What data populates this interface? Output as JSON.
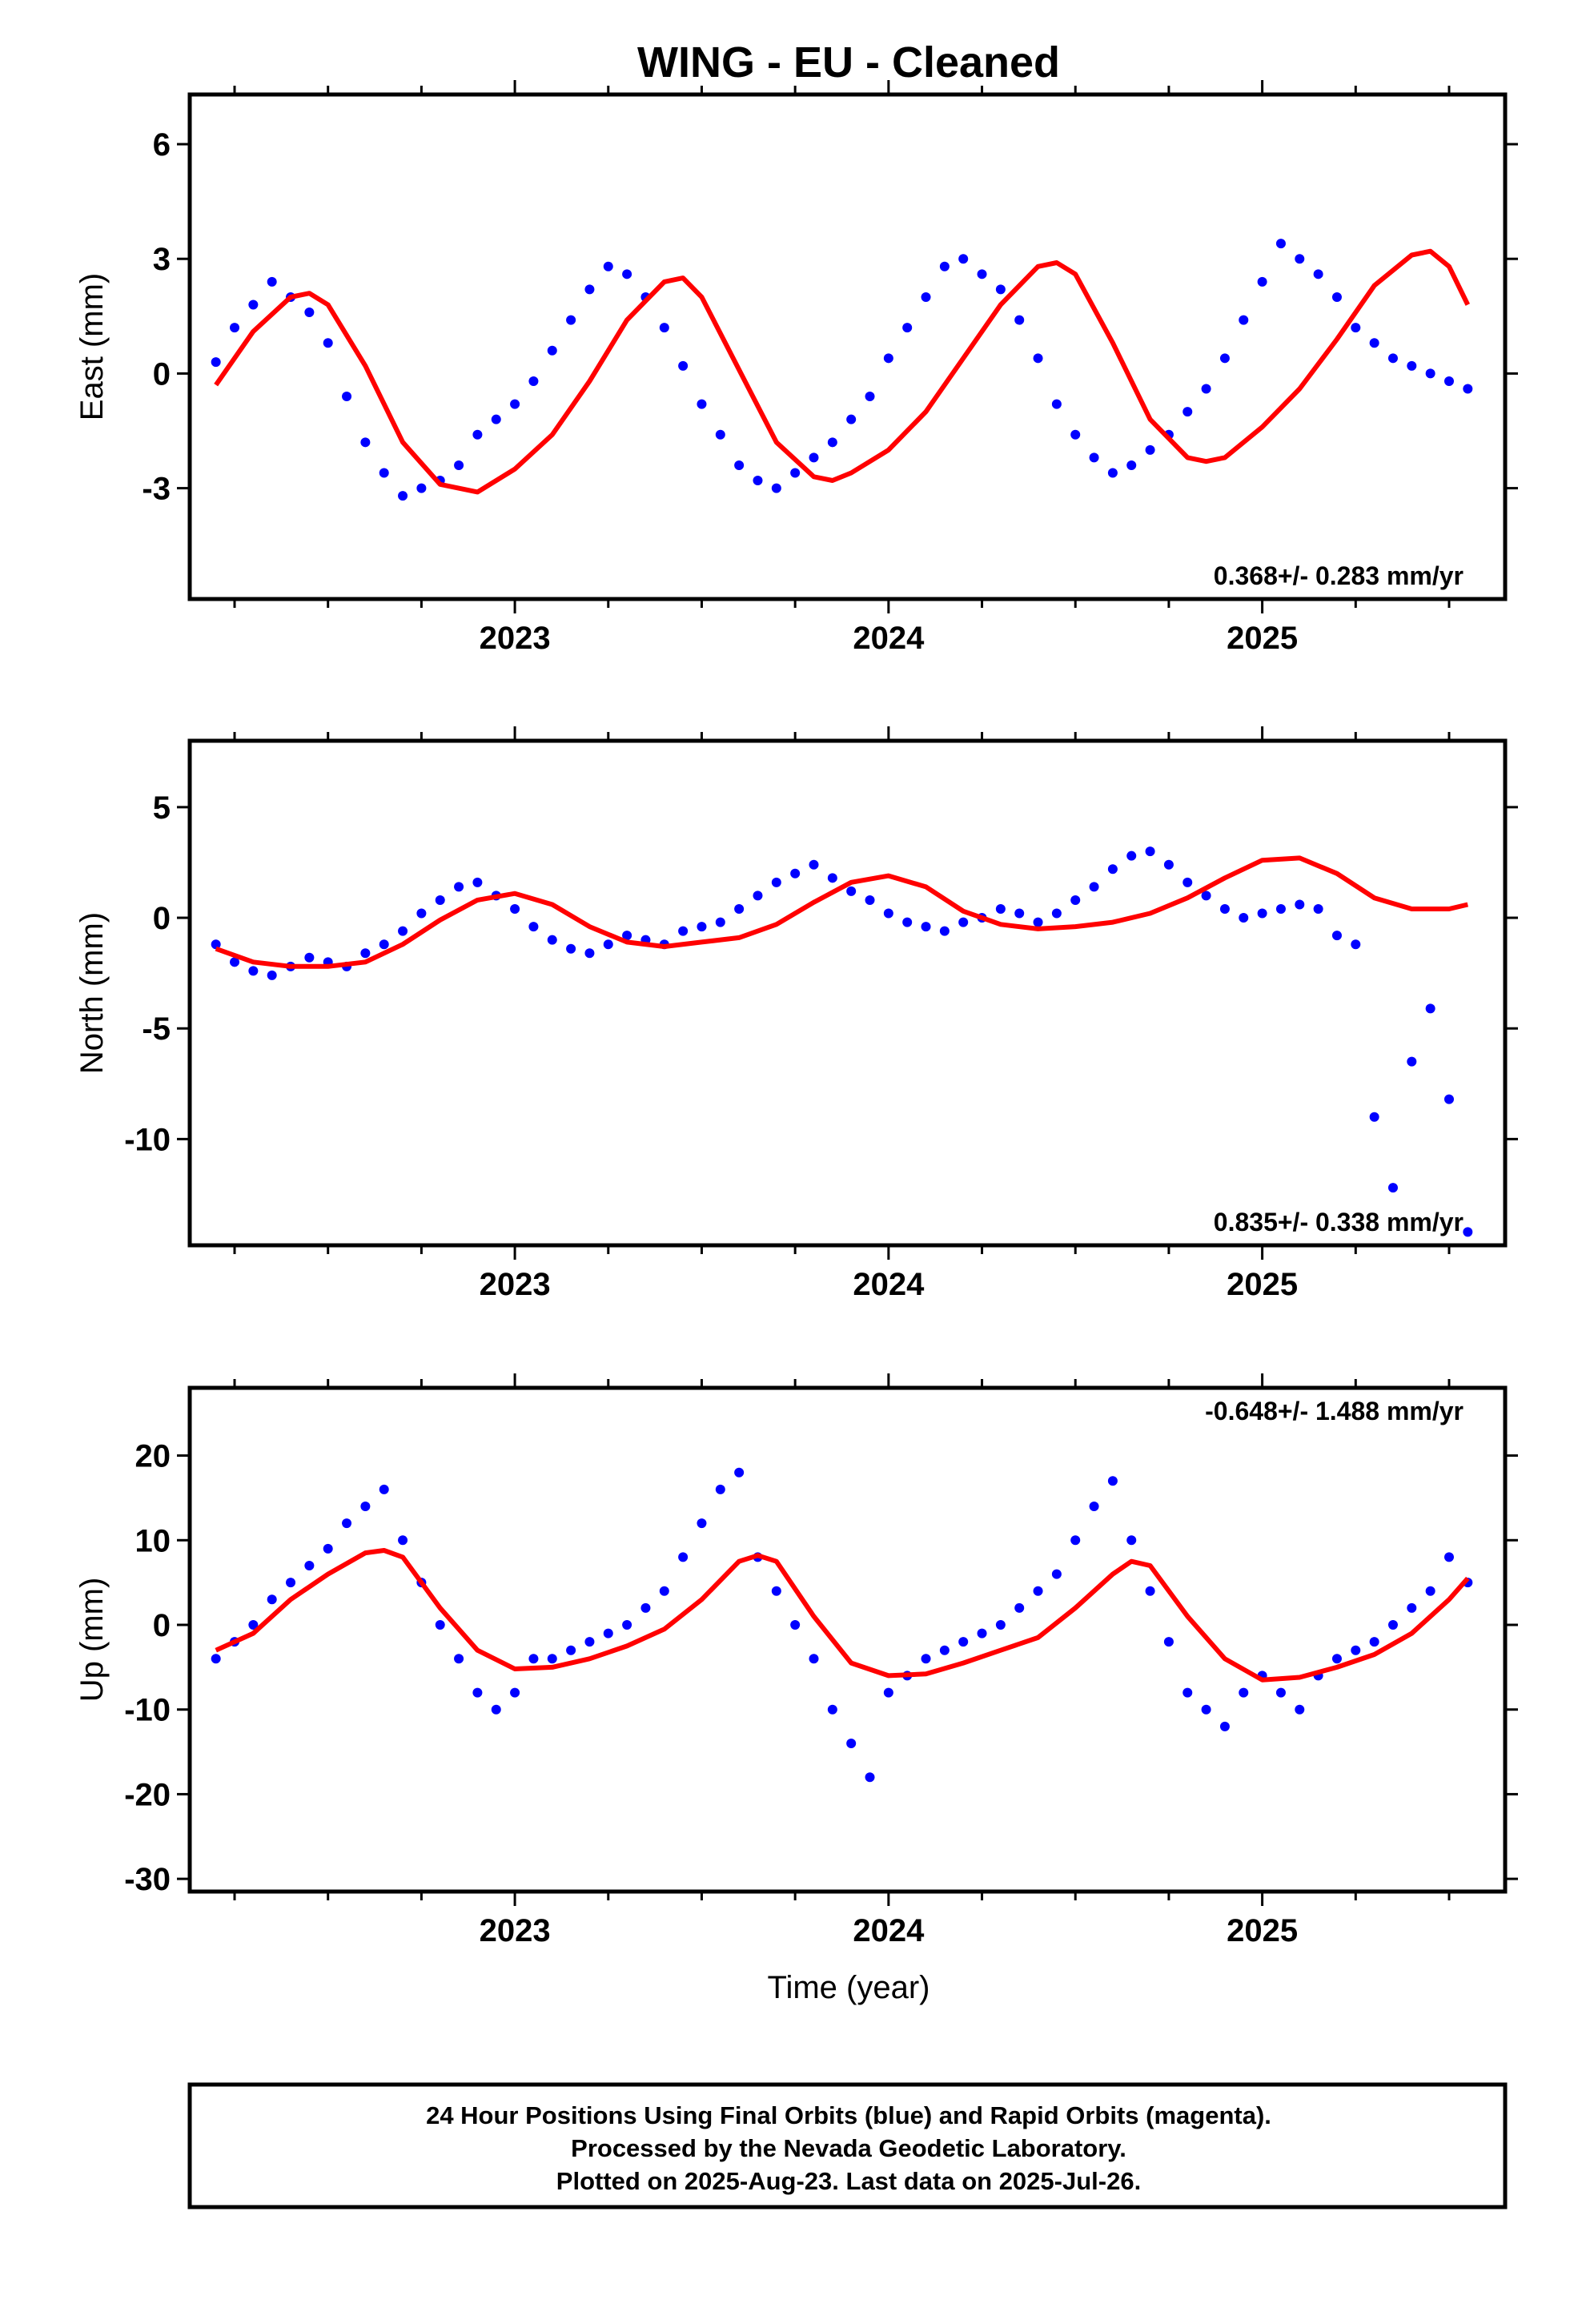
{
  "figure": {
    "title": "WING  - EU - Cleaned",
    "xlabel": "Time (year)",
    "footer": [
      "24 Hour Positions Using Final Orbits (blue) and Rapid Orbits (magenta).",
      "Processed by the Nevada Geodetic Laboratory.",
      "Plotted on 2025-Aug-23. Last data on 2025-Jul-26."
    ],
    "colors": {
      "points": "#0000ff",
      "fit": "#ff0000",
      "axes": "#000000"
    }
  },
  "chart_data": [
    {
      "type": "scatter",
      "component": "East",
      "ylabel": "East (mm)",
      "xlim": [
        2022.13,
        2025.65
      ],
      "ylim": [
        -5.9,
        7.3
      ],
      "yticks": [
        -3,
        0,
        3,
        6
      ],
      "xticks": [
        2023,
        2024,
        2025
      ],
      "rate_label": "0.368+/- 0.283 mm/yr",
      "legend": "none",
      "grid": false,
      "series": [
        {
          "kind": "points",
          "x": [
            2022.2,
            2022.25,
            2022.3,
            2022.35,
            2022.4,
            2022.45,
            2022.5,
            2022.55,
            2022.6,
            2022.65,
            2022.7,
            2022.75,
            2022.8,
            2022.85,
            2022.9,
            2022.95,
            2023.0,
            2023.05,
            2023.1,
            2023.15,
            2023.2,
            2023.25,
            2023.3,
            2023.35,
            2023.4,
            2023.45,
            2023.5,
            2023.55,
            2023.6,
            2023.65,
            2023.7,
            2023.75,
            2023.8,
            2023.85,
            2023.9,
            2023.95,
            2024.0,
            2024.05,
            2024.1,
            2024.15,
            2024.2,
            2024.25,
            2024.3,
            2024.35,
            2024.4,
            2024.45,
            2024.5,
            2024.55,
            2024.6,
            2024.65,
            2024.7,
            2024.75,
            2024.8,
            2024.85,
            2024.9,
            2024.95,
            2025.0,
            2025.05,
            2025.1,
            2025.15,
            2025.2,
            2025.25,
            2025.3,
            2025.35,
            2025.4,
            2025.45,
            2025.5,
            2025.55
          ],
          "y": [
            0.3,
            1.2,
            1.8,
            2.4,
            2.0,
            1.6,
            0.8,
            -0.6,
            -1.8,
            -2.6,
            -3.2,
            -3.0,
            -2.8,
            -2.4,
            -1.6,
            -1.2,
            -0.8,
            -0.2,
            0.6,
            1.4,
            2.2,
            2.8,
            2.6,
            2.0,
            1.2,
            0.2,
            -0.8,
            -1.6,
            -2.4,
            -2.8,
            -3.0,
            -2.6,
            -2.2,
            -1.8,
            -1.2,
            -0.6,
            0.4,
            1.2,
            2.0,
            2.8,
            3.0,
            2.6,
            2.2,
            1.4,
            0.4,
            -0.8,
            -1.6,
            -2.2,
            -2.6,
            -2.4,
            -2.0,
            -1.6,
            -1.0,
            -0.4,
            0.4,
            1.4,
            2.4,
            3.4,
            3.0,
            2.6,
            2.0,
            1.2,
            0.8,
            0.4,
            0.2,
            0.0,
            -0.2,
            -0.4
          ]
        },
        {
          "kind": "fit",
          "x": [
            2022.2,
            2022.3,
            2022.4,
            2022.45,
            2022.5,
            2022.6,
            2022.7,
            2022.8,
            2022.9,
            2023.0,
            2023.1,
            2023.2,
            2023.3,
            2023.4,
            2023.45,
            2023.5,
            2023.6,
            2023.7,
            2023.8,
            2023.85,
            2023.9,
            2024.0,
            2024.1,
            2024.2,
            2024.3,
            2024.4,
            2024.45,
            2024.5,
            2024.6,
            2024.7,
            2024.8,
            2024.85,
            2024.9,
            2025.0,
            2025.1,
            2025.2,
            2025.3,
            2025.4,
            2025.45,
            2025.5,
            2025.55
          ],
          "y": [
            -0.3,
            1.1,
            2.0,
            2.1,
            1.8,
            0.2,
            -1.8,
            -2.9,
            -3.1,
            -2.5,
            -1.6,
            -0.2,
            1.4,
            2.4,
            2.5,
            2.0,
            0.1,
            -1.8,
            -2.7,
            -2.8,
            -2.6,
            -2.0,
            -1.0,
            0.4,
            1.8,
            2.8,
            2.9,
            2.6,
            0.8,
            -1.2,
            -2.2,
            -2.3,
            -2.2,
            -1.4,
            -0.4,
            0.9,
            2.3,
            3.1,
            3.2,
            2.8,
            1.8
          ]
        }
      ]
    },
    {
      "type": "scatter",
      "component": "North",
      "ylabel": "North (mm)",
      "xlim": [
        2022.13,
        2025.65
      ],
      "ylim": [
        -14.8,
        8.0
      ],
      "yticks": [
        -10,
        -5,
        0,
        5
      ],
      "xticks": [
        2023,
        2024,
        2025
      ],
      "rate_label": "0.835+/- 0.338 mm/yr",
      "legend": "none",
      "grid": false,
      "series": [
        {
          "kind": "points",
          "x": [
            2022.2,
            2022.25,
            2022.3,
            2022.35,
            2022.4,
            2022.45,
            2022.5,
            2022.55,
            2022.6,
            2022.65,
            2022.7,
            2022.75,
            2022.8,
            2022.85,
            2022.9,
            2022.95,
            2023.0,
            2023.05,
            2023.1,
            2023.15,
            2023.2,
            2023.25,
            2023.3,
            2023.35,
            2023.4,
            2023.45,
            2023.5,
            2023.55,
            2023.6,
            2023.65,
            2023.7,
            2023.75,
            2023.8,
            2023.85,
            2023.9,
            2023.95,
            2024.0,
            2024.05,
            2024.1,
            2024.15,
            2024.2,
            2024.25,
            2024.3,
            2024.35,
            2024.4,
            2024.45,
            2024.5,
            2024.55,
            2024.6,
            2024.65,
            2024.7,
            2024.75,
            2024.8,
            2024.85,
            2024.9,
            2024.95,
            2025.0,
            2025.05,
            2025.1,
            2025.15,
            2025.2,
            2025.25,
            2025.3,
            2025.35,
            2025.4,
            2025.45,
            2025.5,
            2025.55
          ],
          "y": [
            -1.2,
            -2.0,
            -2.4,
            -2.6,
            -2.2,
            -1.8,
            -2.0,
            -2.2,
            -1.6,
            -1.2,
            -0.6,
            0.2,
            0.8,
            1.4,
            1.6,
            1.0,
            0.4,
            -0.4,
            -1.0,
            -1.4,
            -1.6,
            -1.2,
            -0.8,
            -1.0,
            -1.2,
            -0.6,
            -0.4,
            -0.2,
            0.4,
            1.0,
            1.6,
            2.0,
            2.4,
            1.8,
            1.2,
            0.8,
            0.2,
            -0.2,
            -0.4,
            -0.6,
            -0.2,
            0.0,
            0.4,
            0.2,
            -0.2,
            0.2,
            0.8,
            1.4,
            2.2,
            2.8,
            3.0,
            2.4,
            1.6,
            1.0,
            0.4,
            0.0,
            0.2,
            0.4,
            0.6,
            0.4,
            -0.8,
            -1.2,
            -9.0,
            -12.2,
            -6.5,
            -4.1,
            -8.2,
            -14.2
          ]
        },
        {
          "kind": "fit",
          "x": [
            2022.2,
            2022.3,
            2022.4,
            2022.5,
            2022.6,
            2022.7,
            2022.8,
            2022.9,
            2023.0,
            2023.1,
            2023.2,
            2023.3,
            2023.4,
            2023.5,
            2023.6,
            2023.7,
            2023.8,
            2023.9,
            2024.0,
            2024.1,
            2024.2,
            2024.3,
            2024.4,
            2024.5,
            2024.6,
            2024.7,
            2024.8,
            2024.9,
            2025.0,
            2025.1,
            2025.2,
            2025.3,
            2025.4,
            2025.5,
            2025.55
          ],
          "y": [
            -1.4,
            -2.0,
            -2.2,
            -2.2,
            -2.0,
            -1.2,
            -0.1,
            0.8,
            1.1,
            0.6,
            -0.4,
            -1.1,
            -1.3,
            -1.1,
            -0.9,
            -0.3,
            0.7,
            1.6,
            1.9,
            1.4,
            0.3,
            -0.3,
            -0.5,
            -0.4,
            -0.2,
            0.2,
            0.9,
            1.8,
            2.6,
            2.7,
            2.0,
            0.9,
            0.4,
            0.4,
            0.6
          ]
        }
      ]
    },
    {
      "type": "scatter",
      "component": "Up",
      "ylabel": "Up (mm)",
      "xlim": [
        2022.13,
        2025.65
      ],
      "ylim": [
        -31.5,
        28.0
      ],
      "yticks": [
        -30,
        -20,
        -10,
        0,
        10,
        20
      ],
      "xticks": [
        2023,
        2024,
        2025
      ],
      "rate_label": "-0.648+/- 1.488 mm/yr",
      "legend": "none",
      "grid": false,
      "series": [
        {
          "kind": "points",
          "x": [
            2022.2,
            2022.25,
            2022.3,
            2022.35,
            2022.4,
            2022.45,
            2022.5,
            2022.55,
            2022.6,
            2022.65,
            2022.7,
            2022.75,
            2022.8,
            2022.85,
            2022.9,
            2022.95,
            2023.0,
            2023.05,
            2023.1,
            2023.15,
            2023.2,
            2023.25,
            2023.3,
            2023.35,
            2023.4,
            2023.45,
            2023.5,
            2023.55,
            2023.6,
            2023.65,
            2023.7,
            2023.75,
            2023.8,
            2023.85,
            2023.9,
            2023.95,
            2024.0,
            2024.05,
            2024.1,
            2024.15,
            2024.2,
            2024.25,
            2024.3,
            2024.35,
            2024.4,
            2024.45,
            2024.5,
            2024.55,
            2024.6,
            2024.65,
            2024.7,
            2024.75,
            2024.8,
            2024.85,
            2024.9,
            2024.95,
            2025.0,
            2025.05,
            2025.1,
            2025.15,
            2025.2,
            2025.25,
            2025.3,
            2025.35,
            2025.4,
            2025.45,
            2025.5,
            2025.55
          ],
          "y": [
            -4,
            -2,
            0,
            3,
            5,
            7,
            9,
            12,
            14,
            16,
            10,
            5,
            0,
            -4,
            -8,
            -10,
            -8,
            -4,
            -4,
            -3,
            -2,
            -1,
            0,
            2,
            4,
            8,
            12,
            16,
            18,
            8,
            4,
            0,
            -4,
            -10,
            -14,
            -18,
            -8,
            -6,
            -4,
            -3,
            -2,
            -1,
            0,
            2,
            4,
            6,
            10,
            14,
            17,
            10,
            4,
            -2,
            -8,
            -10,
            -12,
            -8,
            -6,
            -8,
            -10,
            -6,
            -4,
            -3,
            -2,
            0,
            2,
            4,
            8,
            5
          ]
        },
        {
          "kind": "fit",
          "x": [
            2022.2,
            2022.3,
            2022.4,
            2022.5,
            2022.6,
            2022.65,
            2022.7,
            2022.8,
            2022.9,
            2023.0,
            2023.1,
            2023.2,
            2023.3,
            2023.4,
            2023.5,
            2023.6,
            2023.65,
            2023.7,
            2023.8,
            2023.9,
            2024.0,
            2024.1,
            2024.2,
            2024.3,
            2024.4,
            2024.5,
            2024.6,
            2024.65,
            2024.7,
            2024.8,
            2024.9,
            2025.0,
            2025.1,
            2025.2,
            2025.3,
            2025.4,
            2025.5,
            2025.55
          ],
          "y": [
            -3,
            -1,
            3,
            6,
            8.5,
            8.8,
            8,
            2,
            -3,
            -5.2,
            -5,
            -4,
            -2.5,
            -0.5,
            3,
            7.5,
            8.2,
            7.5,
            1,
            -4.5,
            -6,
            -5.8,
            -4.5,
            -3,
            -1.5,
            2,
            6,
            7.5,
            7,
            1,
            -4,
            -6.5,
            -6.2,
            -5,
            -3.5,
            -1,
            3,
            5.5
          ]
        }
      ]
    }
  ]
}
